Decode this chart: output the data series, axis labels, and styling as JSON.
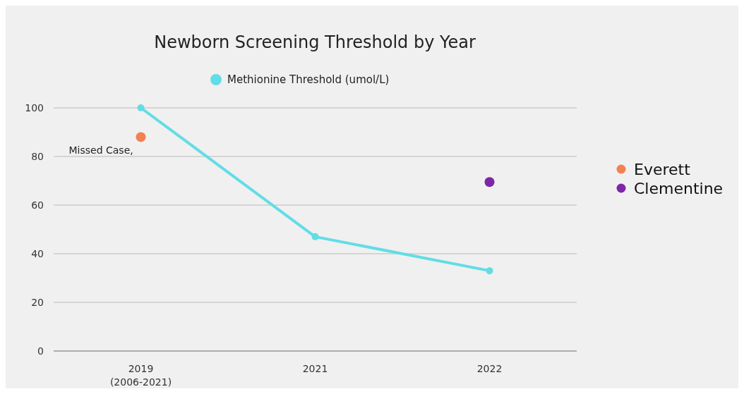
{
  "chart_data": {
    "type": "line",
    "title": "Newborn Screening Threshold by Year",
    "categories": [
      "2019\n(2006-2021)",
      "2021",
      "2022"
    ],
    "ylim": [
      0,
      100
    ],
    "yticks": [
      0,
      20,
      40,
      60,
      80,
      100
    ],
    "grid": "y",
    "legend": "right",
    "marker": "circle",
    "series": [
      {
        "name": "Methionine Threshold (umol/L)",
        "color": "#62dde6",
        "values": [
          100,
          47,
          33
        ]
      },
      {
        "type": "scatter",
        "name": "Everett",
        "color": "#f4804f",
        "values": [
          88,
          null,
          null
        ]
      },
      {
        "type": "scatter",
        "name": "Clementine",
        "color": "#7d27a8",
        "values": [
          null,
          null,
          69.5
        ]
      }
    ],
    "annotations": [
      "Missed Case,"
    ]
  }
}
